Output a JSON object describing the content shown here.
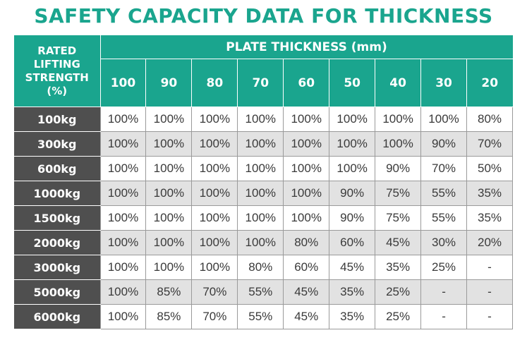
{
  "title": "SAFETY CAPACITY DATA FOR THICKNESS",
  "header": {
    "corner_lines": [
      "RATED",
      "LIFTING",
      "STRENGTH",
      "(%)"
    ],
    "group_label": "PLATE THICKNESS (mm)",
    "thicknesses": [
      "100",
      "90",
      "80",
      "70",
      "60",
      "50",
      "40",
      "30",
      "20"
    ]
  },
  "rows": [
    {
      "label": "100kg",
      "values": [
        "100%",
        "100%",
        "100%",
        "100%",
        "100%",
        "100%",
        "100%",
        "100%",
        "80%"
      ]
    },
    {
      "label": "300kg",
      "values": [
        "100%",
        "100%",
        "100%",
        "100%",
        "100%",
        "100%",
        "100%",
        "90%",
        "70%"
      ]
    },
    {
      "label": "600kg",
      "values": [
        "100%",
        "100%",
        "100%",
        "100%",
        "100%",
        "100%",
        "90%",
        "70%",
        "50%"
      ]
    },
    {
      "label": "1000kg",
      "values": [
        "100%",
        "100%",
        "100%",
        "100%",
        "100%",
        "90%",
        "75%",
        "55%",
        "35%"
      ]
    },
    {
      "label": "1500kg",
      "values": [
        "100%",
        "100%",
        "100%",
        "100%",
        "100%",
        "90%",
        "75%",
        "55%",
        "35%"
      ]
    },
    {
      "label": "2000kg",
      "values": [
        "100%",
        "100%",
        "100%",
        "100%",
        "80%",
        "60%",
        "45%",
        "30%",
        "20%"
      ]
    },
    {
      "label": "3000kg",
      "values": [
        "100%",
        "100%",
        "100%",
        "80%",
        "60%",
        "45%",
        "35%",
        "25%",
        "-"
      ]
    },
    {
      "label": "5000kg",
      "values": [
        "100%",
        "85%",
        "70%",
        "55%",
        "45%",
        "35%",
        "25%",
        "-",
        "-"
      ]
    },
    {
      "label": "6000kg",
      "values": [
        "100%",
        "85%",
        "70%",
        "55%",
        "45%",
        "35%",
        "25%",
        "-",
        "-"
      ]
    }
  ],
  "colors": {
    "accent": "#1aa58e",
    "row_label_bg": "#4f4f4f",
    "alt_row_bg": "#e2e2e2"
  }
}
